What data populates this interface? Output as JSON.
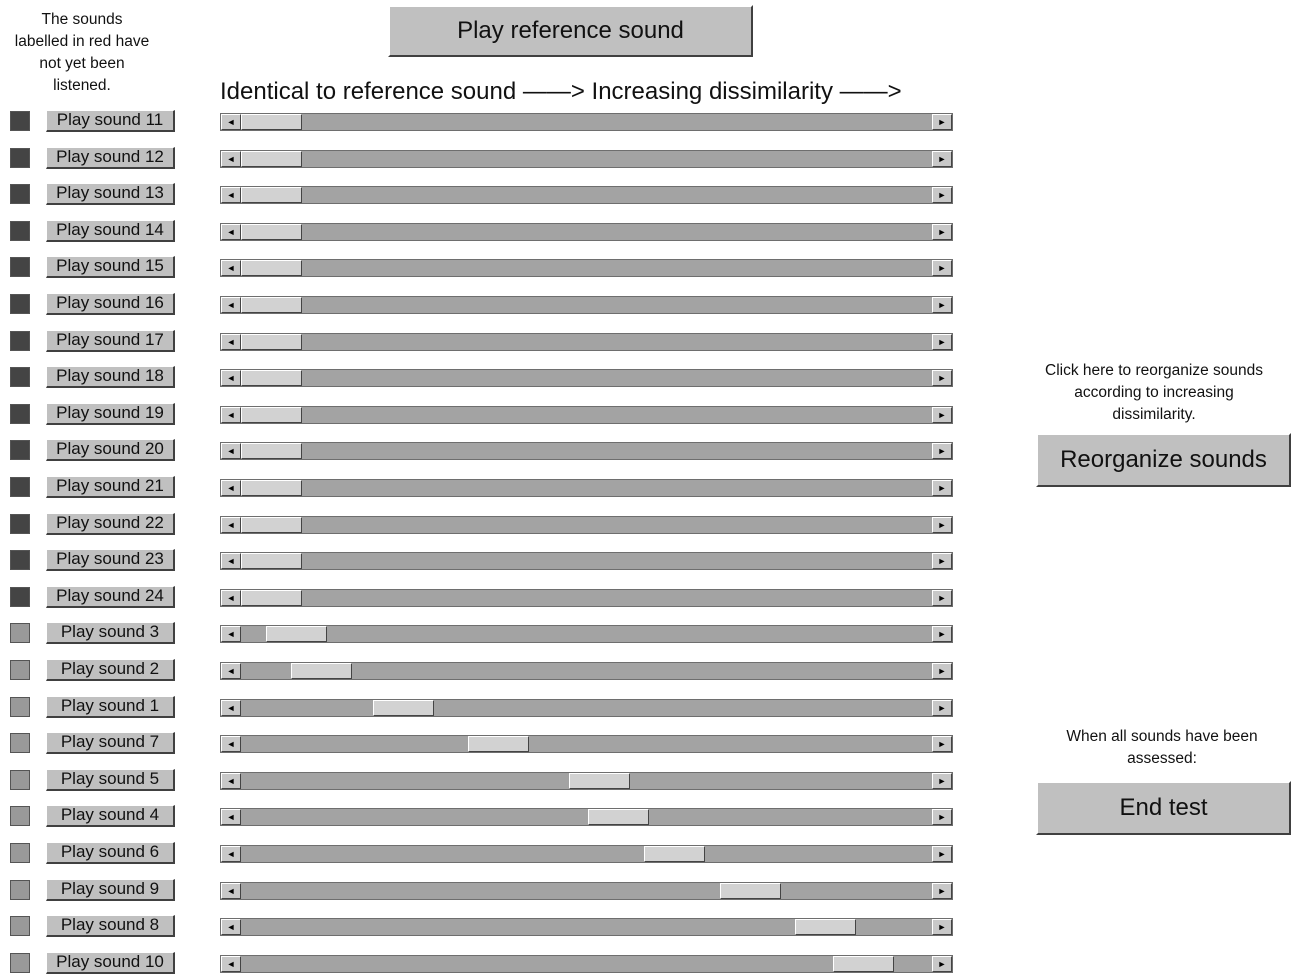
{
  "instructions": {
    "unlistened_note": "The sounds labelled in red have not yet been listened.",
    "scale_label": "Identical to reference sound  ——> Increasing dissimilarity ——>",
    "reorganize_note": "Click here to reorganize sounds according to increasing dissimilarity.",
    "end_note": "When all sounds have been assessed:"
  },
  "buttons": {
    "reference": "Play reference sound",
    "reorganize": "Reorganize sounds",
    "end_test": "End test"
  },
  "icons": {
    "scroll_left": "◄",
    "scroll_right": "►"
  },
  "colors": {
    "unlistened_indicator": "#444444",
    "listened_indicator": "#999999"
  },
  "sounds": [
    {
      "label": "Play sound 11",
      "listened": false,
      "dissimilarity": 0.0
    },
    {
      "label": "Play sound 12",
      "listened": false,
      "dissimilarity": 0.0
    },
    {
      "label": "Play sound 13",
      "listened": false,
      "dissimilarity": 0.0
    },
    {
      "label": "Play sound 14",
      "listened": false,
      "dissimilarity": 0.0
    },
    {
      "label": "Play sound 15",
      "listened": false,
      "dissimilarity": 0.0
    },
    {
      "label": "Play sound 16",
      "listened": false,
      "dissimilarity": 0.0
    },
    {
      "label": "Play sound 17",
      "listened": false,
      "dissimilarity": 0.0
    },
    {
      "label": "Play sound 18",
      "listened": false,
      "dissimilarity": 0.0
    },
    {
      "label": "Play sound 19",
      "listened": false,
      "dissimilarity": 0.0
    },
    {
      "label": "Play sound 20",
      "listened": false,
      "dissimilarity": 0.0
    },
    {
      "label": "Play sound 21",
      "listened": false,
      "dissimilarity": 0.0
    },
    {
      "label": "Play sound 22",
      "listened": false,
      "dissimilarity": 0.0
    },
    {
      "label": "Play sound 23",
      "listened": false,
      "dissimilarity": 0.0
    },
    {
      "label": "Play sound 24",
      "listened": false,
      "dissimilarity": 0.0
    },
    {
      "label": "Play sound 3",
      "listened": true,
      "dissimilarity": 0.04
    },
    {
      "label": "Play sound 2",
      "listened": true,
      "dissimilarity": 0.08
    },
    {
      "label": "Play sound 1",
      "listened": true,
      "dissimilarity": 0.21
    },
    {
      "label": "Play sound 7",
      "listened": true,
      "dissimilarity": 0.36
    },
    {
      "label": "Play sound 5",
      "listened": true,
      "dissimilarity": 0.52
    },
    {
      "label": "Play sound 4",
      "listened": true,
      "dissimilarity": 0.55
    },
    {
      "label": "Play sound 6",
      "listened": true,
      "dissimilarity": 0.64
    },
    {
      "label": "Play sound 9",
      "listened": true,
      "dissimilarity": 0.76
    },
    {
      "label": "Play sound 8",
      "listened": true,
      "dissimilarity": 0.88
    },
    {
      "label": "Play sound 10",
      "listened": true,
      "dissimilarity": 0.94
    }
  ]
}
